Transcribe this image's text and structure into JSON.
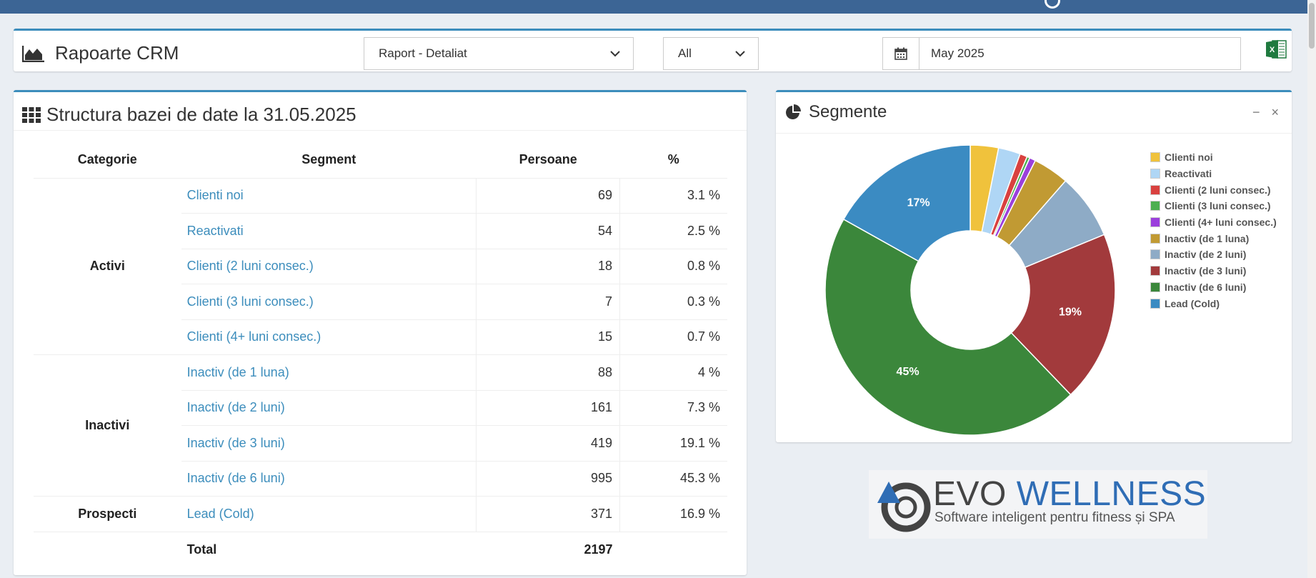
{
  "header": {
    "title": "Rapoarte CRM",
    "report_select": "Raport - Detaliat",
    "filter_select": "All",
    "date_value": "May 2025"
  },
  "structure": {
    "title": "Structura bazei de date la 31.05.2025",
    "columns": [
      "Categorie",
      "Segment",
      "Persoane",
      "%"
    ],
    "groups": [
      {
        "category": "Activi",
        "rows": [
          {
            "segment": "Clienti noi",
            "persons": "69",
            "pct": "3.1 %"
          },
          {
            "segment": "Reactivati",
            "persons": "54",
            "pct": "2.5 %"
          },
          {
            "segment": "Clienti (2 luni consec.)",
            "persons": "18",
            "pct": "0.8 %"
          },
          {
            "segment": "Clienti (3 luni consec.)",
            "persons": "7",
            "pct": "0.3 %"
          },
          {
            "segment": "Clienti (4+ luni consec.)",
            "persons": "15",
            "pct": "0.7 %"
          }
        ]
      },
      {
        "category": "Inactivi",
        "rows": [
          {
            "segment": "Inactiv (de 1 luna)",
            "persons": "88",
            "pct": "4 %"
          },
          {
            "segment": "Inactiv (de 2 luni)",
            "persons": "161",
            "pct": "7.3 %"
          },
          {
            "segment": "Inactiv (de 3 luni)",
            "persons": "419",
            "pct": "19.1 %"
          },
          {
            "segment": "Inactiv (de 6 luni)",
            "persons": "995",
            "pct": "45.3 %"
          }
        ]
      },
      {
        "category": "Prospecti",
        "rows": [
          {
            "segment": "Lead (Cold)",
            "persons": "371",
            "pct": "16.9 %"
          }
        ]
      }
    ],
    "total_label": "Total",
    "total_value": "2197"
  },
  "segments_panel": {
    "title": "Segmente",
    "minimize_symbol": "−",
    "close_symbol": "×"
  },
  "chart_data": {
    "type": "pie",
    "donut": true,
    "categories": [
      "Clienti noi",
      "Reactivati",
      "Clienti (2 luni consec.)",
      "Clienti (3 luni consec.)",
      "Clienti (4+ luni consec.)",
      "Inactiv (de 1 luna)",
      "Inactiv (de 2 luni)",
      "Inactiv (de 3 luni)",
      "Inactiv (de 6 luni)",
      "Lead (Cold)"
    ],
    "values": [
      69,
      54,
      18,
      7,
      15,
      88,
      161,
      419,
      995,
      371
    ],
    "colors": [
      "#f0c23c",
      "#afd6f5",
      "#d9413f",
      "#4caf50",
      "#9b3fdc",
      "#c19a33",
      "#8eabc6",
      "#a23a3c",
      "#3b873b",
      "#3b8bc2"
    ],
    "data_labels": [
      "",
      "",
      "",
      "",
      "",
      "",
      "",
      "19%",
      "45%",
      "17%"
    ],
    "legend_position": "right"
  },
  "logo": {
    "word1": "EVO",
    "word2": "WELLNESS",
    "tagline": "Software inteligent pentru fitness și SPA"
  }
}
